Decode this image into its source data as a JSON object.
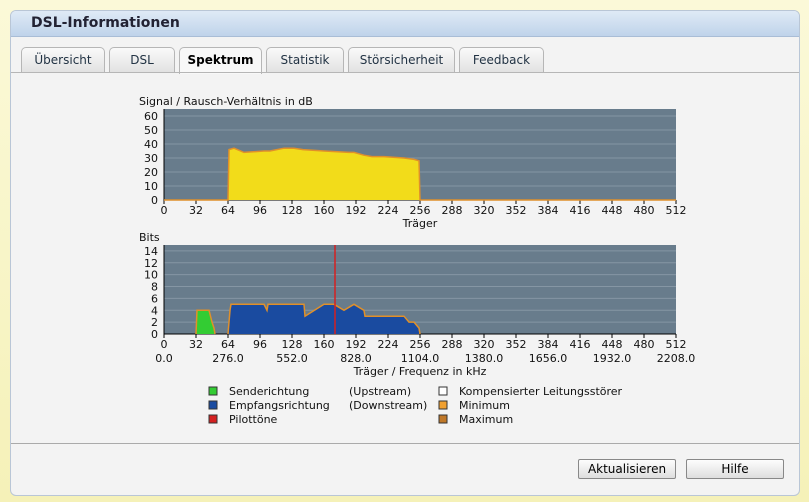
{
  "header": {
    "title": "DSL-Informationen"
  },
  "tabs": [
    "Übersicht",
    "DSL",
    "Spektrum",
    "Statistik",
    "Störsicherheit",
    "Feedback"
  ],
  "active_tab": 2,
  "chart_data": [
    {
      "type": "area",
      "ylabel": "Signal / Rausch-Verhältnis in dB",
      "xlabel": "Träger",
      "xlim": [
        0,
        512
      ],
      "xticks": [
        0,
        32,
        64,
        96,
        128,
        160,
        192,
        224,
        256,
        288,
        320,
        352,
        384,
        416,
        448,
        480,
        512
      ],
      "ylim": [
        0,
        65
      ],
      "yticks": [
        0,
        10,
        20,
        30,
        40,
        50,
        60
      ],
      "grid": true,
      "series": [
        {
          "color": "#f2dc1a",
          "outline": "#e0902a",
          "x": [
            0,
            64,
            65,
            70,
            80,
            100,
            106,
            120,
            130,
            139,
            160,
            185,
            190,
            200,
            208,
            220,
            240,
            250,
            255,
            256,
            512
          ],
          "values": [
            0,
            0,
            36,
            37,
            34,
            35,
            35,
            37,
            37,
            36,
            35,
            34,
            34,
            32,
            31,
            31,
            30,
            29,
            28,
            0,
            0
          ]
        }
      ]
    },
    {
      "type": "area",
      "ylabel": "Bits",
      "xlabel": "Träger / Frequenz in kHz",
      "xlim": [
        0,
        512
      ],
      "xticks": [
        0,
        32,
        64,
        96,
        128,
        160,
        192,
        224,
        256,
        288,
        320,
        352,
        384,
        416,
        448,
        480,
        512
      ],
      "x2lim": [
        0,
        2208
      ],
      "x2ticks": [
        {
          "value": 0,
          "label": "0.0"
        },
        {
          "value": 276,
          "label": "276.0"
        },
        {
          "value": 552,
          "label": "552.0"
        },
        {
          "value": 828,
          "label": "828.0"
        },
        {
          "value": 1104,
          "label": "1104.0"
        },
        {
          "value": 1380,
          "label": "1380.0"
        },
        {
          "value": 1656,
          "label": "1656.0"
        },
        {
          "value": 1932,
          "label": "1932.0"
        },
        {
          "value": 2208,
          "label": "2208.0"
        }
      ],
      "ylim": [
        0,
        15
      ],
      "yticks": [
        0,
        2,
        4,
        6,
        8,
        10,
        12,
        14
      ],
      "grid": true,
      "series": [
        {
          "color": "#33cc33",
          "outline": "#e0902a",
          "x": [
            32,
            33,
            34,
            45,
            48,
            50,
            51
          ],
          "values": [
            0,
            4,
            4,
            4,
            2,
            1,
            0
          ]
        },
        {
          "color": "#1a4ba0",
          "outline": "#e0902a",
          "x": [
            64,
            66,
            67,
            70,
            100,
            103,
            104,
            105,
            140,
            141,
            160,
            170,
            180,
            190,
            200,
            201,
            240,
            245,
            250,
            255,
            256
          ],
          "values": [
            0,
            4,
            5,
            5,
            5,
            4,
            5,
            5,
            5,
            3,
            5,
            5,
            4,
            5,
            4,
            3,
            3,
            2,
            2,
            1,
            0
          ]
        },
        {
          "style": "spike",
          "color": "#d42020",
          "x": [
            171
          ],
          "values": [
            15
          ]
        }
      ]
    }
  ],
  "legend": [
    {
      "label": "Senderichtung",
      "note": "(Upstream)",
      "color": "#33cc33"
    },
    {
      "label": "Empfangsrichtung",
      "note": "(Downstream)",
      "color": "#1a4ba0"
    },
    {
      "label": "Pilottöne",
      "color": "#d42020"
    },
    {
      "label": "Kompensierter Leitungsstörer",
      "color": "#ffffff"
    },
    {
      "label": "Minimum",
      "color": "#f0a030"
    },
    {
      "label": "Maximum",
      "color": "#c07828"
    }
  ],
  "buttons": [
    "Aktualisieren",
    "Hilfe"
  ]
}
